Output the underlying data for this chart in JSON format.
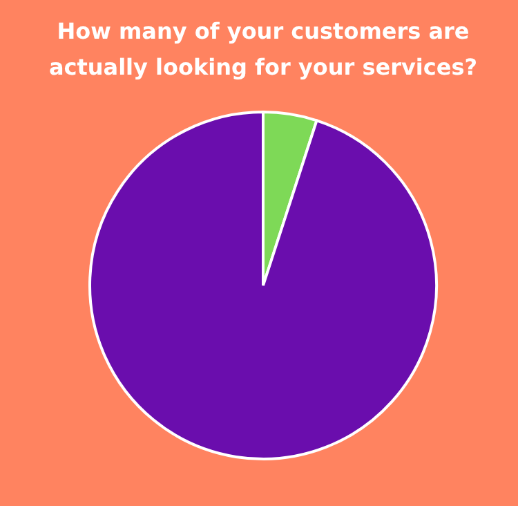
{
  "chart_data": {
    "type": "pie",
    "title": "How many of your customers are actually looking for your services?",
    "categories": [
      null,
      null
    ],
    "values": [
      5,
      95
    ],
    "colors": [
      "#7ed957",
      "#6a0dad"
    ],
    "legend": false
  }
}
